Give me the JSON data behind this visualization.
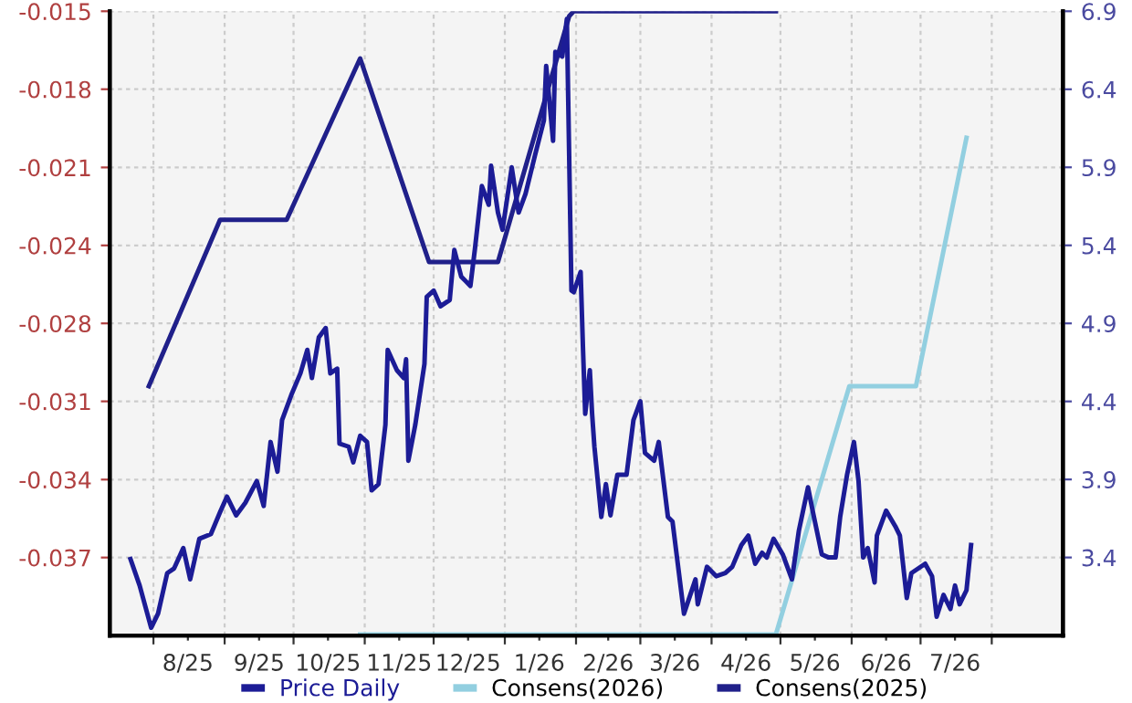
{
  "chart_data": {
    "type": "line",
    "series": [
      {
        "name": "Price Daily",
        "color": "#1c1c96",
        "axis": "y2",
        "x": [
          "2025-07-22",
          "2025-07-26",
          "2025-07-31",
          "2025-08-03",
          "2025-08-07",
          "2025-08-10",
          "2025-08-14",
          "2025-08-17",
          "2025-08-21",
          "2025-08-26",
          "2025-08-30",
          "2025-09-02",
          "2025-09-06",
          "2025-09-10",
          "2025-09-15",
          "2025-09-18",
          "2025-09-21",
          "2025-09-24",
          "2025-09-26",
          "2025-09-30",
          "2025-10-04",
          "2025-10-07",
          "2025-10-09",
          "2025-10-12",
          "2025-10-15",
          "2025-10-17",
          "2025-10-20",
          "2025-10-21",
          "2025-10-25",
          "2025-10-27",
          "2025-10-30",
          "2025-11-02",
          "2025-11-04",
          "2025-11-07",
          "2025-11-10",
          "2025-11-11",
          "2025-11-15",
          "2025-11-18",
          "2025-11-19",
          "2025-11-20",
          "2025-11-23",
          "2025-11-27",
          "2025-11-28",
          "2025-12-01",
          "2025-12-04",
          "2025-12-08",
          "2025-12-10",
          "2025-12-13",
          "2025-12-17",
          "2025-12-19",
          "2025-12-22",
          "2025-12-25",
          "2025-12-26",
          "2025-12-29",
          "2025-12-31",
          "2026-01-04",
          "2026-01-07",
          "2026-01-10",
          "2026-01-14",
          "2026-01-18",
          "2026-01-19",
          "2026-01-22",
          "2026-01-23",
          "2026-01-26",
          "2026-01-28",
          "2026-01-30",
          "2026-01-31",
          "2026-02-03",
          "2026-02-04",
          "2026-02-05",
          "2026-02-07",
          "2026-02-08",
          "2026-02-09",
          "2026-02-12",
          "2026-02-14",
          "2026-02-16",
          "2026-02-19",
          "2026-02-23",
          "2026-02-26",
          "2026-03-01",
          "2026-03-03",
          "2026-03-07",
          "2026-03-09",
          "2026-03-13",
          "2026-03-15",
          "2026-03-20",
          "2026-03-25",
          "2026-03-26",
          "2026-03-30",
          "2026-04-03",
          "2026-04-07",
          "2026-04-10",
          "2026-04-14",
          "2026-04-17",
          "2026-04-20",
          "2026-04-23",
          "2026-04-25",
          "2026-04-28",
          "2026-05-02",
          "2026-05-06",
          "2026-05-09",
          "2026-05-13",
          "2026-05-15",
          "2026-05-19",
          "2026-05-22",
          "2026-05-25",
          "2026-05-27",
          "2026-05-30",
          "2026-06-02",
          "2026-06-04",
          "2026-06-06",
          "2026-06-08",
          "2026-06-11",
          "2026-06-12",
          "2026-06-16",
          "2026-06-20",
          "2026-06-22",
          "2026-06-25",
          "2026-06-27",
          "2026-07-03",
          "2026-07-06",
          "2026-07-08",
          "2026-07-11",
          "2026-07-14",
          "2026-07-16",
          "2026-07-18",
          "2026-07-21",
          "2026-07-23"
        ],
        "values": [
          3.39,
          3.22,
          2.95,
          3.04,
          3.3,
          3.33,
          3.46,
          3.26,
          3.52,
          3.55,
          3.69,
          3.79,
          3.67,
          3.75,
          3.89,
          3.73,
          4.14,
          3.95,
          4.28,
          4.44,
          4.58,
          4.73,
          4.55,
          4.81,
          4.87,
          4.58,
          4.61,
          4.13,
          4.11,
          4.01,
          4.18,
          4.14,
          3.83,
          3.87,
          4.25,
          4.73,
          4.6,
          4.55,
          4.67,
          4.02,
          4.25,
          4.64,
          5.07,
          5.11,
          5.01,
          5.05,
          5.37,
          5.2,
          5.14,
          5.38,
          5.78,
          5.66,
          5.91,
          5.61,
          5.5,
          5.9,
          5.61,
          5.73,
          5.97,
          6.2,
          6.55,
          6.07,
          6.64,
          6.61,
          6.85,
          5.11,
          5.1,
          5.23,
          4.75,
          4.32,
          4.6,
          4.32,
          4.11,
          3.66,
          3.87,
          3.67,
          3.93,
          3.93,
          4.28,
          4.4,
          4.07,
          4.02,
          4.14,
          3.66,
          3.63,
          3.04,
          3.26,
          3.1,
          3.34,
          3.28,
          3.3,
          3.34,
          3.48,
          3.54,
          3.36,
          3.43,
          3.4,
          3.52,
          3.42,
          3.26,
          3.57,
          3.85,
          3.7,
          3.42,
          3.4,
          3.4,
          3.66,
          3.93,
          4.14,
          3.89,
          3.4,
          3.46,
          3.24,
          3.54,
          3.7,
          3.6,
          3.54,
          3.14,
          3.3,
          3.36,
          3.28,
          3.02,
          3.16,
          3.07,
          3.22,
          3.1,
          3.19,
          3.48
        ]
      },
      {
        "name": "Consens(2026)",
        "color": "#92cfe0",
        "x": [
          "2025-10-30",
          "2026-04-29",
          "2026-05-31",
          "2026-06-29",
          "2026-07-21"
        ],
        "values": [
          -0.0401,
          -0.0401,
          -0.0301,
          -0.0301,
          -0.0201
        ]
      },
      {
        "name": "Consens(2025)",
        "color": "#20208a",
        "x": [
          "2025-07-30",
          "2025-08-30",
          "2025-09-28",
          "2025-10-30",
          "2025-11-29",
          "2025-12-29",
          "2026-01-29",
          "2026-01-31",
          "2026-04-29"
        ],
        "values": [
          -0.0301,
          -0.0234,
          -0.0234,
          -0.0169,
          -0.0251,
          -0.0251,
          -0.0152,
          -0.015,
          -0.015
        ]
      }
    ],
    "xlim": [
      "2025-07-13",
      "2026-09-01"
    ],
    "xticks": [
      {
        "value": "2025-08-01",
        "label": null
      },
      {
        "value": "2025-08-16",
        "label": "8/25"
      },
      {
        "value": "2025-09-01",
        "label": null
      },
      {
        "value": "2025-09-16",
        "label": "9/25"
      },
      {
        "value": "2025-10-01",
        "label": null
      },
      {
        "value": "2025-10-16",
        "label": "10/25"
      },
      {
        "value": "2025-11-01",
        "label": null
      },
      {
        "value": "2025-11-16",
        "label": "11/25"
      },
      {
        "value": "2025-12-01",
        "label": null
      },
      {
        "value": "2025-12-16",
        "label": "12/25"
      },
      {
        "value": "2026-01-01",
        "label": null
      },
      {
        "value": "2026-01-16",
        "label": "1/26"
      },
      {
        "value": "2026-02-01",
        "label": null
      },
      {
        "value": "2026-02-15",
        "label": "2/26"
      },
      {
        "value": "2026-03-01",
        "label": null
      },
      {
        "value": "2026-03-16",
        "label": "3/26"
      },
      {
        "value": "2026-04-01",
        "label": null
      },
      {
        "value": "2026-04-16",
        "label": "4/26"
      },
      {
        "value": "2026-05-01",
        "label": null
      },
      {
        "value": "2026-05-16",
        "label": "5/26"
      },
      {
        "value": "2026-06-01",
        "label": null
      },
      {
        "value": "2026-06-16",
        "label": "6/26"
      },
      {
        "value": "2026-07-01",
        "label": null
      },
      {
        "value": "2026-07-16",
        "label": "7/26"
      },
      {
        "value": "2026-08-01",
        "label": null
      }
    ],
    "ylim": [
      -0.04014,
      -0.015
    ],
    "yticks": [
      {
        "value": -0.015,
        "label": "-0.015"
      },
      {
        "value": -0.01814,
        "label": "-0.018"
      },
      {
        "value": -0.02129,
        "label": "-0.021"
      },
      {
        "value": -0.02443,
        "label": "-0.024"
      },
      {
        "value": -0.02757,
        "label": "-0.028"
      },
      {
        "value": -0.03071,
        "label": "-0.031"
      },
      {
        "value": -0.03386,
        "label": "-0.034"
      },
      {
        "value": -0.037,
        "label": "-0.037"
      }
    ],
    "y2lim": [
      2.9,
      6.9
    ],
    "y2ticks": [
      6.9,
      6.4,
      5.9,
      5.4,
      4.9,
      4.4,
      3.9,
      3.4
    ],
    "grid": true,
    "legend": "bottom",
    "line_style": "solid",
    "marker": "none"
  }
}
